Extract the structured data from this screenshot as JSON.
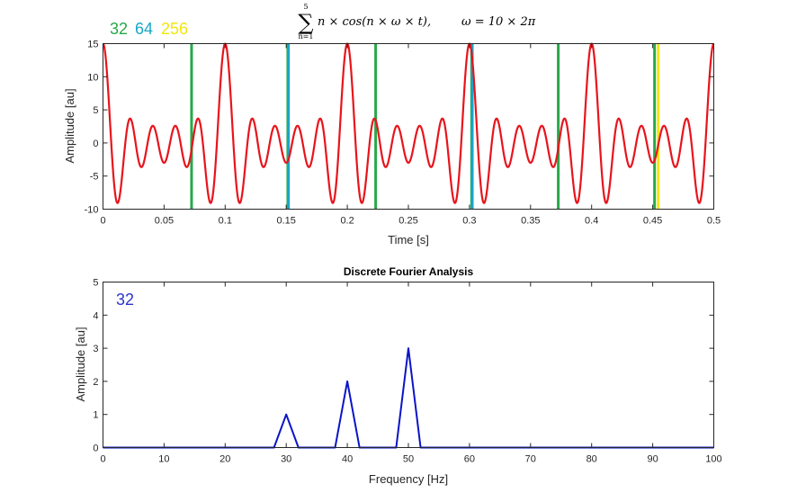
{
  "formula": {
    "sum_top": "5",
    "sum_sigma": "∑",
    "sum_bottom": "n=1",
    "expr": "n × cos(n × ω × t),",
    "omega": "ω = 10 × 2π"
  },
  "colors": {
    "signal": "#e8141c",
    "spectrum": "#0a14c8",
    "n32": "#27a84a",
    "n64": "#17a6c8",
    "n256": "#f2e60c"
  },
  "chart_data": [
    {
      "type": "line",
      "title": "",
      "xlabel": "Time [s]",
      "ylabel": "Amplitude [au]",
      "xlim": [
        0,
        0.5
      ],
      "ylim": [
        -10,
        15
      ],
      "xticks": [
        "0",
        "0.05",
        "0.1",
        "0.15",
        "0.2",
        "0.25",
        "0.3",
        "0.35",
        "0.4",
        "0.45",
        "0.5"
      ],
      "yticks": [
        "-10",
        "-5",
        "0",
        "5",
        "10",
        "15"
      ],
      "grid": false,
      "series": [
        {
          "function": "sum_{n=1}^{5} n*cos(n*omega*t)",
          "omega": 62.832,
          "color": "#e8141c"
        }
      ],
      "legend": [
        {
          "label": "32",
          "color": "#27a84a"
        },
        {
          "label": "64",
          "color": "#17a6c8"
        },
        {
          "label": "256",
          "color": "#f2e60c"
        }
      ],
      "sample_markers": [
        {
          "group": "32",
          "color": "#27a84a",
          "x": [
            0.0725,
            0.1513,
            0.2232,
            0.3018,
            0.3727,
            0.4515
          ]
        },
        {
          "group": "64",
          "color": "#17a6c8",
          "x": [
            0.1518,
            0.3023
          ]
        },
        {
          "group": "256",
          "color": "#f2e60c",
          "x": [
            0.4545
          ]
        }
      ]
    },
    {
      "type": "line",
      "title": "Discrete Fourier Analysis",
      "annotation": "32",
      "xlabel": "Frequency [Hz]",
      "ylabel": "Amplitude [au]",
      "xlim": [
        0,
        100
      ],
      "ylim": [
        0,
        5
      ],
      "xticks": [
        "0",
        "10",
        "20",
        "30",
        "40",
        "50",
        "60",
        "70",
        "80",
        "90",
        "100"
      ],
      "yticks": [
        "0",
        "1",
        "2",
        "3",
        "4",
        "5"
      ],
      "grid": false,
      "series": [
        {
          "color": "#0a14c8",
          "x": [
            0,
            28,
            30,
            32,
            38,
            40,
            42,
            48,
            50,
            52,
            100
          ],
          "y": [
            0,
            0,
            1,
            0,
            0,
            2,
            0,
            0,
            3,
            0,
            0
          ]
        }
      ]
    }
  ]
}
